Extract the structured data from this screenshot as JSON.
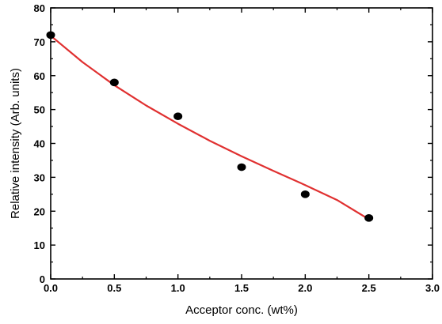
{
  "chart_data": {
    "type": "scatter",
    "xlabel": "Acceptor conc. (wt%)",
    "ylabel": "Relative intensity (Arb. units)",
    "xlim": [
      0.0,
      3.0
    ],
    "ylim": [
      0,
      80
    ],
    "x_ticks": [
      0.0,
      0.5,
      1.0,
      1.5,
      2.0,
      2.5,
      3.0
    ],
    "x_tick_labels": [
      "0.0",
      "0.5",
      "1.0",
      "1.5",
      "2.0",
      "2.5",
      "3.0"
    ],
    "y_ticks": [
      0,
      10,
      20,
      30,
      40,
      50,
      60,
      70,
      80
    ],
    "y_tick_labels": [
      "0",
      "10",
      "20",
      "30",
      "40",
      "50",
      "60",
      "70",
      "80"
    ],
    "grid": false,
    "series": [
      {
        "kind": "points",
        "x": [
          0.0,
          0.5,
          1.0,
          1.5,
          2.0,
          2.5
        ],
        "y": [
          72,
          58,
          48,
          33,
          25,
          18
        ],
        "color": "#000000"
      },
      {
        "kind": "fit-line",
        "x": [
          0.0,
          0.25,
          0.5,
          0.75,
          1.0,
          1.25,
          1.5,
          1.75,
          2.0,
          2.25,
          2.5
        ],
        "y": [
          71.8,
          64.0,
          57.2,
          51.2,
          45.8,
          40.8,
          36.2,
          31.9,
          27.7,
          23.3,
          17.6
        ],
        "color": "#e03030"
      }
    ]
  }
}
